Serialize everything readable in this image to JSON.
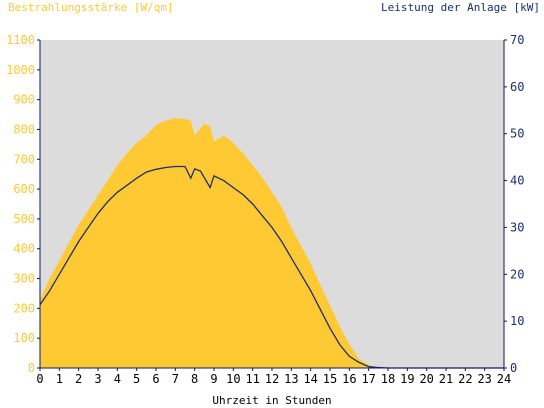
{
  "chart_data": {
    "type": "area",
    "ylabel_left": "Bestrahlungsstärke [W/qm]",
    "ylabel_right": "Leistung der Anlage [kW]",
    "xlabel": "Uhrzeit in Stunden",
    "xlim": [
      0,
      24
    ],
    "ylim_left": [
      0,
      1100
    ],
    "ylim_right": [
      0,
      70
    ],
    "x_ticks": [
      "0",
      "1",
      "2",
      "3",
      "4",
      "5",
      "6",
      "7",
      "8",
      "9",
      "10",
      "11",
      "12",
      "13",
      "14",
      "15",
      "16",
      "17",
      "18",
      "19",
      "20",
      "21",
      "22",
      "23",
      "24"
    ],
    "y_left_ticks": [
      "0",
      "100",
      "200",
      "300",
      "400",
      "500",
      "600",
      "700",
      "800",
      "900",
      "1000",
      "1100"
    ],
    "y_right_ticks": [
      "0",
      "10",
      "20",
      "30",
      "40",
      "50",
      "60",
      "70"
    ],
    "colors": {
      "irradiance": "#ffc933",
      "power": "#1d2f6b",
      "plot_bg": "#dcdcdc",
      "axis": "#0a1a5c"
    },
    "series": [
      {
        "axis": "left",
        "x": [
          0,
          0.5,
          1,
          1.5,
          2,
          2.5,
          3,
          3.5,
          4,
          4.5,
          5,
          5.5,
          6,
          6.5,
          7,
          7.5,
          7.8,
          8,
          8.5,
          8.8,
          9,
          9.5,
          10,
          10.5,
          11,
          11.5,
          12,
          12.5,
          13,
          13.5,
          14,
          14.5,
          15,
          15.5,
          16,
          16.5,
          17,
          17.3,
          17.5,
          18,
          24
        ],
        "y": [
          230,
          300,
          360,
          420,
          480,
          530,
          580,
          630,
          680,
          720,
          755,
          780,
          815,
          830,
          838,
          835,
          830,
          780,
          820,
          810,
          760,
          780,
          755,
          720,
          680,
          640,
          590,
          540,
          470,
          410,
          350,
          280,
          210,
          140,
          80,
          30,
          10,
          4,
          2,
          0,
          0
        ]
      },
      {
        "axis": "right",
        "x": [
          0,
          0.5,
          1,
          1.5,
          2,
          2.5,
          3,
          3.5,
          4,
          4.5,
          5,
          5.5,
          6,
          6.5,
          7,
          7.5,
          7.8,
          8,
          8.3,
          8.8,
          9,
          9.5,
          10,
          10.5,
          11,
          11.5,
          12,
          12.5,
          13,
          13.5,
          14,
          14.5,
          15,
          15.5,
          16,
          16.5,
          17,
          17.5,
          18,
          24
        ],
        "y": [
          13.5,
          16.5,
          20,
          23.5,
          27,
          30,
          33,
          35.5,
          37.5,
          39,
          40.5,
          41.8,
          42.4,
          42.8,
          43,
          43,
          40.5,
          42.5,
          42,
          38.5,
          41,
          40,
          38.5,
          37,
          35,
          32.5,
          30,
          27,
          23.5,
          20,
          16.5,
          12.5,
          8.5,
          5,
          2.5,
          1.2,
          0.3,
          0.1,
          0,
          0
        ]
      }
    ]
  }
}
